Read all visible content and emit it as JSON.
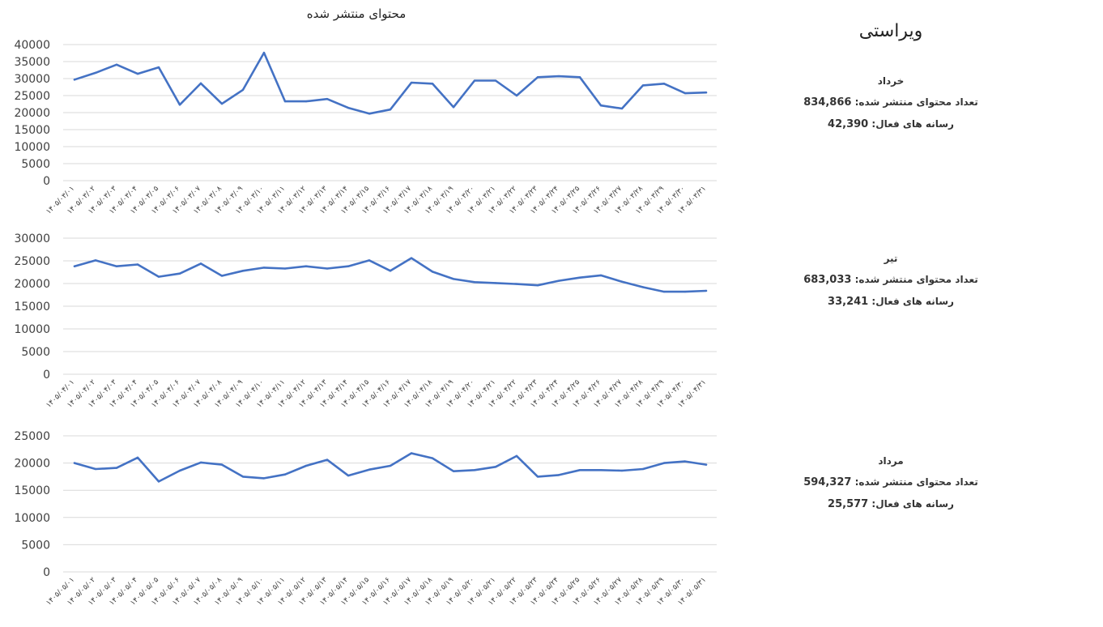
{
  "page": {
    "title": "ویراستی"
  },
  "chart_data": [
    {
      "type": "line",
      "title": "محتوای منتشر شده",
      "ylim": [
        0,
        40000
      ],
      "yticks": [
        "0",
        "5000",
        "10000",
        "15000",
        "20000",
        "25000",
        "30000",
        "35000",
        "40000"
      ],
      "categories": [
        "۱۴۰۵/۰۳/۰۱",
        "۱۴۰۵/۰۳/۰۲",
        "۱۴۰۵/۰۳/۰۳",
        "۱۴۰۵/۰۳/۰۴",
        "۱۴۰۵/۰۳/۰۵",
        "۱۴۰۵/۰۳/۰۶",
        "۱۴۰۵/۰۳/۰۷",
        "۱۴۰۵/۰۳/۰۸",
        "۱۴۰۵/۰۳/۰۹",
        "۱۴۰۵/۰۳/۱۰",
        "۱۴۰۵/۰۳/۱۱",
        "۱۴۰۵/۰۳/۱۲",
        "۱۴۰۵/۰۳/۱۳",
        "۱۴۰۵/۰۳/۱۴",
        "۱۴۰۵/۰۳/۱۵",
        "۱۴۰۵/۰۳/۱۶",
        "۱۴۰۵/۰۳/۱۷",
        "۱۴۰۵/۰۳/۱۸",
        "۱۴۰۵/۰۳/۱۹",
        "۱۴۰۵/۰۳/۲۰",
        "۱۴۰۵/۰۳/۲۱",
        "۱۴۰۵/۰۳/۲۲",
        "۱۴۰۵/۰۳/۲۳",
        "۱۴۰۵/۰۳/۲۴",
        "۱۴۰۵/۰۳/۲۵",
        "۱۴۰۵/۰۳/۲۶",
        "۱۴۰۵/۰۳/۲۷",
        "۱۴۰۵/۰۳/۲۸",
        "۱۴۰۵/۰۳/۲۹",
        "۱۴۰۵/۰۳/۳۰",
        "۱۴۰۵/۰۳/۳۱"
      ],
      "values": [
        29700,
        31700,
        34100,
        31400,
        33300,
        22300,
        28600,
        22600,
        26700,
        37600,
        23300,
        23300,
        24000,
        21400,
        19700,
        20900,
        28800,
        28500,
        21600,
        29400,
        29400,
        25000,
        30400,
        30700,
        30400,
        22100,
        21200,
        28000,
        28500,
        25700,
        25900
      ],
      "grid": true,
      "color": "#4472C4"
    },
    {
      "type": "line",
      "ylim": [
        0,
        30000
      ],
      "yticks": [
        "0",
        "5000",
        "10000",
        "15000",
        "20000",
        "25000",
        "30000"
      ],
      "categories": [
        "۱۴۰۵/۰۴/۰۱",
        "۱۴۰۵/۰۴/۰۲",
        "۱۴۰۵/۰۴/۰۳",
        "۱۴۰۵/۰۴/۰۴",
        "۱۴۰۵/۰۴/۰۵",
        "۱۴۰۵/۰۴/۰۶",
        "۱۴۰۵/۰۴/۰۷",
        "۱۴۰۵/۰۴/۰۸",
        "۱۴۰۵/۰۴/۰۹",
        "۱۴۰۵/۰۴/۱۰",
        "۱۴۰۵/۰۴/۱۱",
        "۱۴۰۵/۰۴/۱۲",
        "۱۴۰۵/۰۴/۱۳",
        "۱۴۰۵/۰۴/۱۴",
        "۱۴۰۵/۰۴/۱۵",
        "۱۴۰۵/۰۴/۱۶",
        "۱۴۰۵/۰۴/۱۷",
        "۱۴۰۵/۰۴/۱۸",
        "۱۴۰۵/۰۴/۱۹",
        "۱۴۰۵/۰۴/۲۰",
        "۱۴۰۵/۰۴/۲۱",
        "۱۴۰۵/۰۴/۲۲",
        "۱۴۰۵/۰۴/۲۳",
        "۱۴۰۵/۰۴/۲۴",
        "۱۴۰۵/۰۴/۲۵",
        "۱۴۰۵/۰۴/۲۶",
        "۱۴۰۵/۰۴/۲۷",
        "۱۴۰۵/۰۴/۲۸",
        "۱۴۰۵/۰۴/۲۹",
        "۱۴۰۵/۰۴/۳۰",
        "۱۴۰۵/۰۴/۳۱"
      ],
      "values": [
        23800,
        25100,
        23800,
        24200,
        21500,
        22200,
        24400,
        21700,
        22800,
        23500,
        23300,
        23800,
        23300,
        23800,
        25100,
        22800,
        25600,
        22600,
        21000,
        20300,
        20100,
        19900,
        19600,
        20600,
        21300,
        21800,
        20400,
        19200,
        18200,
        18200,
        18400
      ],
      "grid": true,
      "color": "#4472C4"
    },
    {
      "type": "line",
      "ylim": [
        0,
        25000
      ],
      "yticks": [
        "0",
        "5000",
        "10000",
        "15000",
        "20000",
        "25000"
      ],
      "categories": [
        "۱۴۰۵/۰۵/۰۱",
        "۱۴۰۵/۰۵/۰۲",
        "۱۴۰۵/۰۵/۰۳",
        "۱۴۰۵/۰۵/۰۴",
        "۱۴۰۵/۰۵/۰۵",
        "۱۴۰۵/۰۵/۰۶",
        "۱۴۰۵/۰۵/۰۷",
        "۱۴۰۵/۰۵/۰۸",
        "۱۴۰۵/۰۵/۰۹",
        "۱۴۰۵/۰۵/۱۰",
        "۱۴۰۵/۰۵/۱۱",
        "۱۴۰۵/۰۵/۱۲",
        "۱۴۰۵/۰۵/۱۳",
        "۱۴۰۵/۰۵/۱۴",
        "۱۴۰۵/۰۵/۱۵",
        "۱۴۰۵/۰۵/۱۶",
        "۱۴۰۵/۰۵/۱۷",
        "۱۴۰۵/۰۵/۱۸",
        "۱۴۰۵/۰۵/۱۹",
        "۱۴۰۵/۰۵/۲۰",
        "۱۴۰۵/۰۵/۲۱",
        "۱۴۰۵/۰۵/۲۲",
        "۱۴۰۵/۰۵/۲۳",
        "۱۴۰۵/۰۵/۲۴",
        "۱۴۰۵/۰۵/۲۵",
        "۱۴۰۵/۰۵/۲۶",
        "۱۴۰۵/۰۵/۲۷",
        "۱۴۰۵/۰۵/۲۸",
        "۱۴۰۵/۰۵/۲۹",
        "۱۴۰۵/۰۵/۳۰",
        "۱۴۰۵/۰۵/۳۱"
      ],
      "values": [
        20000,
        18900,
        19100,
        21000,
        16600,
        18600,
        20100,
        19700,
        17500,
        17200,
        17900,
        19500,
        20600,
        17700,
        18800,
        19500,
        21800,
        20900,
        18500,
        18700,
        19300,
        21300,
        17500,
        17800,
        18700,
        18700,
        18600,
        18900,
        20000,
        20300,
        19700
      ],
      "grid": true,
      "color": "#4472C4"
    }
  ],
  "months": [
    {
      "name": "خرداد",
      "content_label": "تعداد محتوای منتشر شده:",
      "content_value": "834,866",
      "media_label": "رسانه های فعال:",
      "media_value": "42,390"
    },
    {
      "name": "تیر",
      "content_label": "تعداد محتوای منتشر شده:",
      "content_value": "683,033",
      "media_label": "رسانه های فعال:",
      "media_value": "33,241"
    },
    {
      "name": "مرداد",
      "content_label": "تعداد محتوای منتشر شده:",
      "content_value": "594,327",
      "media_label": "رسانه های فعال:",
      "media_value": "25,577"
    }
  ]
}
